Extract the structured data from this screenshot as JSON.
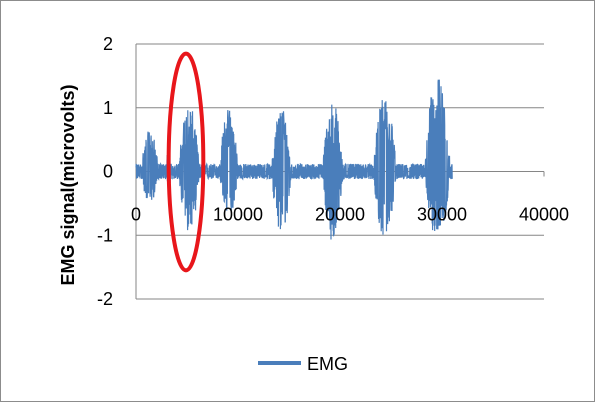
{
  "chart_data": {
    "type": "line",
    "title": "",
    "xlabel": "",
    "ylabel": "EMG signal(microvolts)",
    "xlim": [
      0,
      40000
    ],
    "ylim": [
      -2,
      2
    ],
    "x_ticks": [
      0,
      10000,
      20000,
      30000,
      40000
    ],
    "x_tick_labels": [
      "0",
      "10000",
      "20000",
      "30000",
      "40000"
    ],
    "y_ticks": [
      2,
      1,
      0,
      -1,
      -2
    ],
    "y_tick_labels": [
      "2",
      "1",
      "0",
      "-1",
      "-2"
    ],
    "grid": "horizontal",
    "legend_position": "bottom",
    "series": [
      {
        "name": "EMG",
        "color": "#4a7ebb",
        "x_range": [
          0,
          31000
        ],
        "bursts": [
          {
            "start": 500,
            "end": 2200,
            "peak_pos": 0.65,
            "peak_neg": -0.5
          },
          {
            "start": 3000,
            "end": 3400,
            "peak_pos": 0.55,
            "peak_neg": -0.4
          },
          {
            "start": 4200,
            "end": 6200,
            "peak_pos": 1.05,
            "peak_neg": -0.95
          },
          {
            "start": 8200,
            "end": 10000,
            "peak_pos": 1.0,
            "peak_neg": -0.7
          },
          {
            "start": 13300,
            "end": 15200,
            "peak_pos": 1.05,
            "peak_neg": -1.0
          },
          {
            "start": 18300,
            "end": 20300,
            "peak_pos": 1.1,
            "peak_neg": -1.1
          },
          {
            "start": 23300,
            "end": 25500,
            "peak_pos": 1.2,
            "peak_neg": -1.05
          },
          {
            "start": 28300,
            "end": 30800,
            "peak_pos": 1.5,
            "peak_neg": -1.05
          }
        ],
        "baseline_amplitude": 0.12
      }
    ],
    "annotations": [
      {
        "type": "ellipse",
        "color": "#e8161b",
        "center": [
          4900,
          0.15
        ],
        "radius_x": 1700,
        "radius_y": 1.7
      }
    ]
  }
}
